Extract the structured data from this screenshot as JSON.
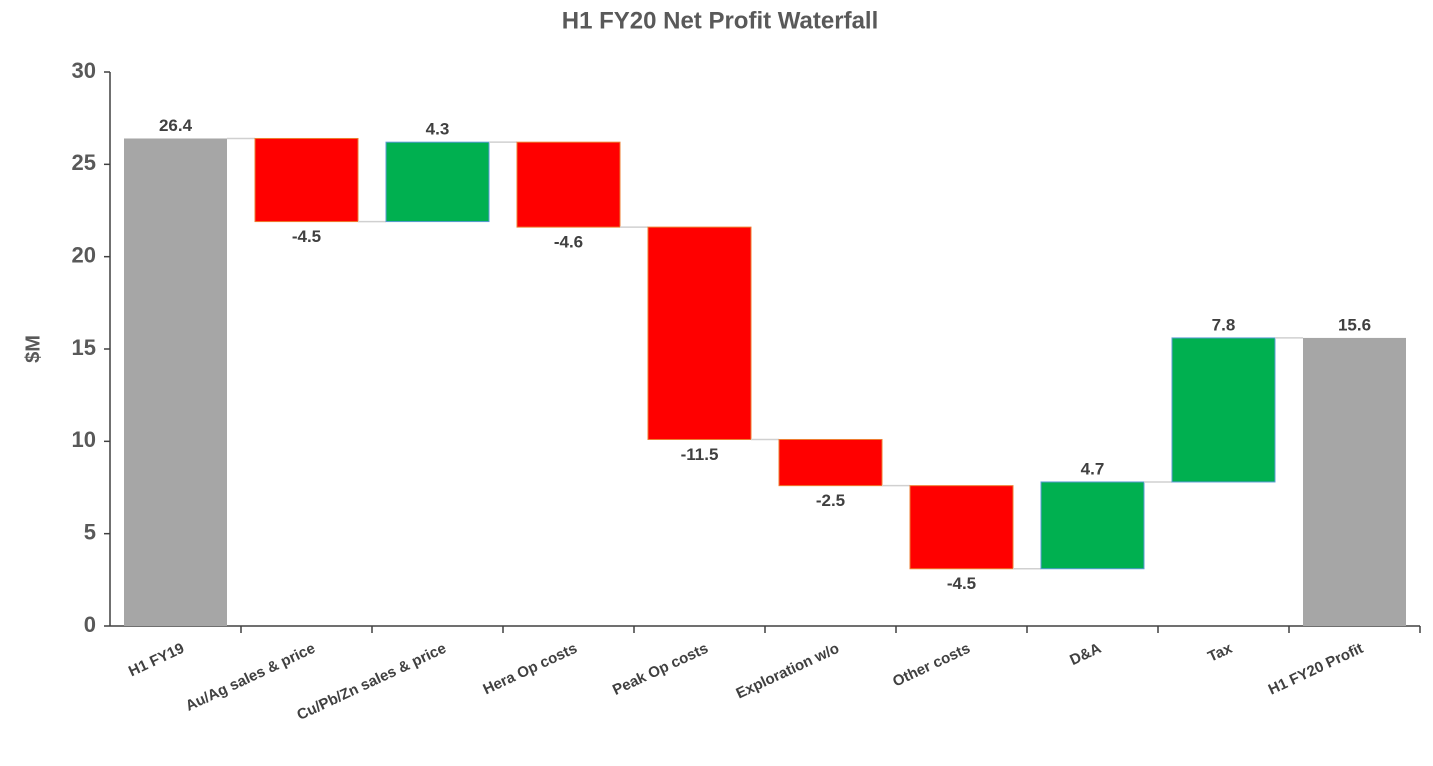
{
  "chart_data": {
    "type": "waterfall",
    "title": "H1 FY20 Net Profit Waterfall",
    "y_label": "$M",
    "categories": [
      "H1 FY19",
      "Au/Ag sales & price",
      "Cu/Pb/Zn sales & price",
      "Hera Op costs",
      "Peak Op costs",
      "Exploration w/o",
      "Other costs",
      "D&A",
      "Tax",
      "H1 FY20 Profit"
    ],
    "values": [
      26.4,
      -4.5,
      4.3,
      -4.6,
      -11.5,
      -2.5,
      -4.5,
      4.7,
      7.8,
      15.6
    ],
    "measure": [
      "total",
      "relative",
      "relative",
      "relative",
      "relative",
      "relative",
      "relative",
      "relative",
      "relative",
      "total"
    ],
    "colors": {
      "total": "#a6a6a6",
      "increase": "#00b050",
      "decrease": "#ff0000"
    },
    "ylim": [
      0,
      30
    ],
    "yticks": [
      0,
      5,
      10,
      15,
      20,
      25,
      30
    ]
  }
}
